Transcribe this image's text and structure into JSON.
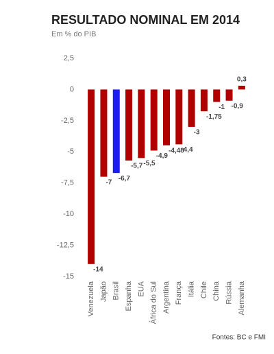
{
  "chart_data": {
    "type": "bar",
    "title": "RESULTADO NOMINAL EM 2014",
    "subtitle": "Em % do PIB",
    "source": "Fontes: BC e FMI",
    "categories": [
      "Venezuela",
      "Japão",
      "Brasil",
      "Espanha",
      "EUA",
      "África do Sul",
      "Argentina",
      "França",
      "Itália",
      "Chile",
      "China",
      "Rússia",
      "Alemanha"
    ],
    "values": [
      -14,
      -7,
      -6.7,
      -5.7,
      -5.5,
      -4.9,
      -4.48,
      -4.4,
      -3,
      -1.75,
      -1,
      -0.9,
      0.3
    ],
    "value_labels": [
      "-14",
      "-7",
      "-6,7",
      "-5,7",
      "-5,5",
      "-4,9",
      "-4,48",
      "-4,4",
      "-3",
      "-1,75",
      "-1",
      "-0,9",
      "0,3"
    ],
    "colors": [
      "#b00000",
      "#b00000",
      "#1c1cf5",
      "#b00000",
      "#b00000",
      "#b00000",
      "#b00000",
      "#b00000",
      "#b00000",
      "#b00000",
      "#b00000",
      "#b00000",
      "#b00000"
    ],
    "ylim": [
      -15,
      2.5
    ],
    "yticks": [
      {
        "value": 2.5,
        "label": "2,5"
      },
      0,
      {
        "value": -2.5,
        "label": "-2,5"
      },
      -5,
      {
        "value": -7.5,
        "label": "-7,5"
      },
      -10,
      {
        "value": -12.5,
        "label": "-12,5"
      },
      -15
    ],
    "grid": false
  }
}
